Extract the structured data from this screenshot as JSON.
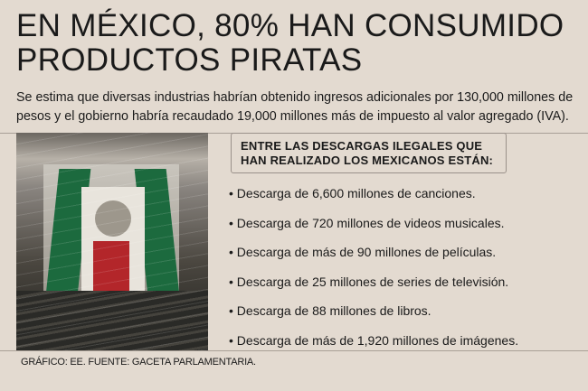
{
  "title": "EN MÉXICO, 80% HAN CONSUMIDO PRODUCTOS PIRATAS",
  "lead": "Se estima que diversas industrias habrían obtenido ingresos adicionales por 130,000 millones de pesos y el gobierno habría recaudado 19,000 millones más de impuesto al valor agregado (IVA).",
  "box": {
    "line1": "ENTRE LAS DESCARGAS ILEGALES QUE",
    "line2": "HAN REALIZADO LOS MEXICANOS ESTÁN:"
  },
  "items": [
    "Descarga de 6,600 millones de canciones.",
    "Descarga de 720 millones de videos musicales.",
    "Descarga de más de 90 millones de películas.",
    "Descarga de 25 millones de series de televisión.",
    "Descarga de 88 millones de libros.",
    "Descarga de más de 1,920 millones de imágenes."
  ],
  "credit": "GRÁFICO: EE. FUENTE: GACETA PARLAMENTARIA.",
  "colors": {
    "background": "#e3dad0",
    "flag_green": "#1c6a3e",
    "flag_red": "#b3262a"
  }
}
